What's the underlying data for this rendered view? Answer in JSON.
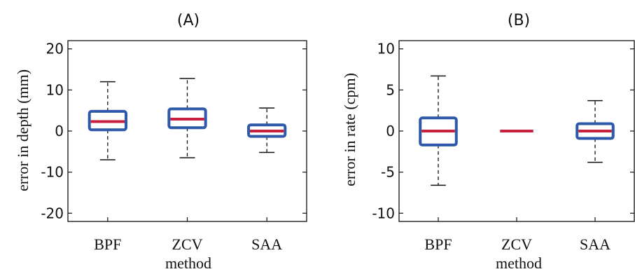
{
  "chart_data": [
    {
      "type": "box",
      "title": "(A)",
      "xlabel": "method",
      "ylabel": "error in depth (mm)",
      "categories": [
        "BPF",
        "ZCV",
        "SAA"
      ],
      "ylim": [
        -22,
        22
      ],
      "yticks": [
        -20,
        -10,
        0,
        10,
        20
      ],
      "ytick_labels": [
        "-20",
        "-10",
        "0",
        "10",
        "20"
      ],
      "grid": false,
      "boxes": [
        {
          "whisker_low": -7,
          "q1": 0.3,
          "median": 2.3,
          "q3": 4.8,
          "whisker_high": 12
        },
        {
          "whisker_low": -6.5,
          "q1": 0.8,
          "median": 2.9,
          "q3": 5.4,
          "whisker_high": 12.8
        },
        {
          "whisker_low": -5.2,
          "q1": -1.3,
          "median": 0,
          "q3": 1.5,
          "whisker_high": 5.6
        }
      ],
      "box_color": "#2e59a8",
      "median_color": "#c8203f"
    },
    {
      "type": "box",
      "title": "(B)",
      "xlabel": "method",
      "ylabel": "error in rate (cpm)",
      "categories": [
        "BPF",
        "ZCV",
        "SAA"
      ],
      "ylim": [
        -11,
        11
      ],
      "yticks": [
        -10,
        -5,
        0,
        5,
        10
      ],
      "ytick_labels": [
        "-10",
        "-5",
        "0",
        "5",
        "10"
      ],
      "grid": false,
      "boxes": [
        {
          "whisker_low": -6.6,
          "q1": -1.7,
          "median": 0,
          "q3": 1.6,
          "whisker_high": 6.7
        },
        {
          "whisker_low": 0,
          "q1": 0,
          "median": 0,
          "q3": 0,
          "whisker_high": 0
        },
        {
          "whisker_low": -3.8,
          "q1": -0.9,
          "median": 0,
          "q3": 0.9,
          "whisker_high": 3.7
        }
      ],
      "box_color": "#2e59a8",
      "median_color": "#c8203f"
    }
  ]
}
